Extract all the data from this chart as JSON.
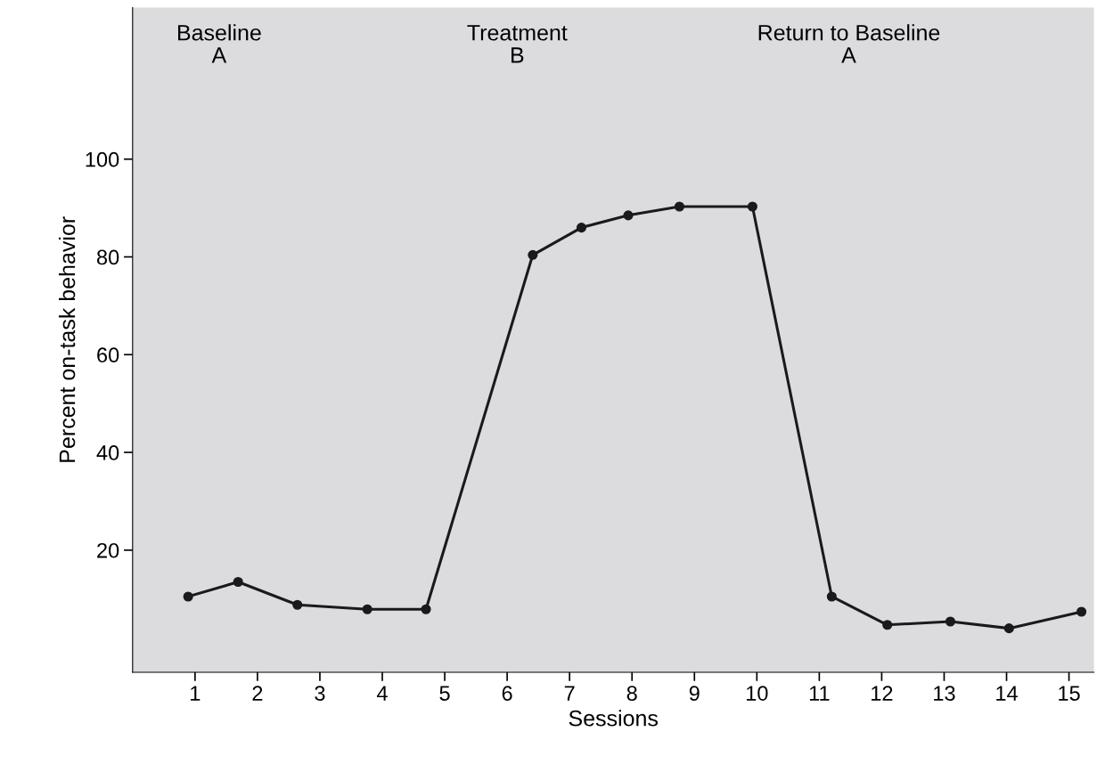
{
  "chart_data": {
    "type": "line",
    "xlabel": "Sessions",
    "ylabel": "Percent on-task behavior",
    "x": [
      0.89,
      1.69,
      2.64,
      3.76,
      4.7,
      6.41,
      7.19,
      7.94,
      8.76,
      9.93,
      11.2,
      12.09,
      13.1,
      14.04,
      15.2
    ],
    "series": [
      {
        "color": "#1a1a1a",
        "values": [
          10.5,
          13.5,
          8.8,
          7.9,
          7.9,
          80.4,
          86,
          88.5,
          90.3,
          90.3,
          10.5,
          4.7,
          5.4,
          4,
          7.4
        ]
      }
    ],
    "xlim": [
      0,
      15.4
    ],
    "xticks": [
      1,
      2,
      3,
      4,
      5,
      6,
      7,
      8,
      9,
      10,
      11,
      12,
      13,
      14,
      15
    ],
    "ylim": [
      -5,
      131
    ],
    "yticks": [
      20,
      40,
      60,
      80,
      100
    ],
    "annotations": [
      "Baseline\nA",
      "Treatment\nB",
      "Return to Baseline\nA"
    ],
    "marker": "circle",
    "line_style": "solid",
    "grid": false,
    "legend": false
  }
}
